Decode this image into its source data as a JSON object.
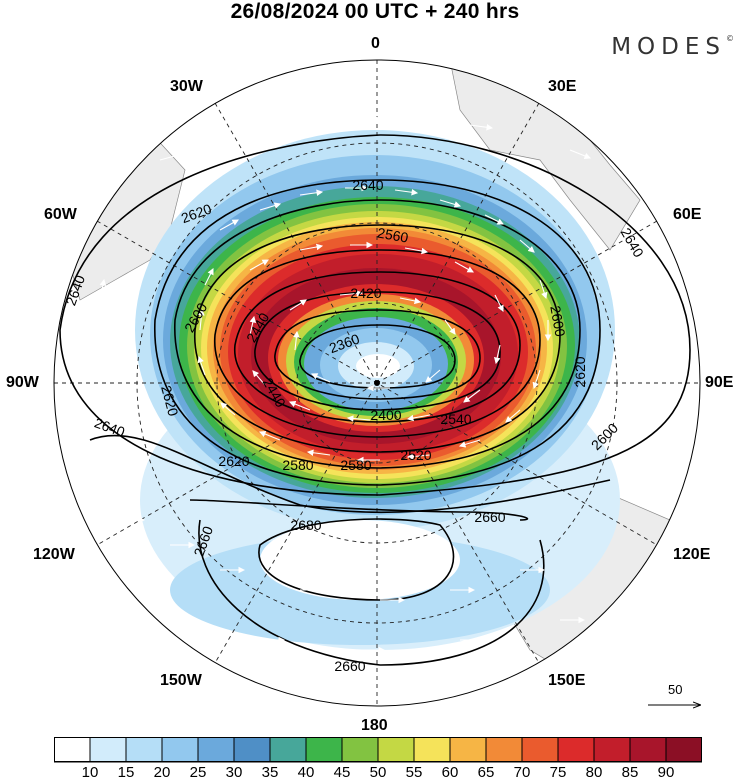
{
  "title": "26/08/2024  00 UTC  + 240 hrs",
  "brand": "MODES",
  "brand_mark": "©",
  "longitude_labels": {
    "top": "0",
    "bottom": "180",
    "left": "90W",
    "right": "90E",
    "w30": "30W",
    "e30": "30E",
    "w60": "60W",
    "e60": "60E",
    "w120": "120W",
    "e120": "120E",
    "w150": "150W",
    "e150": "150E"
  },
  "contour_labels": [
    "2640",
    "2620",
    "2560",
    "2600",
    "2420",
    "2440",
    "2360",
    "2400",
    "2620",
    "2640",
    "2640",
    "2580",
    "2580",
    "2520",
    "2620",
    "2660",
    "2680",
    "2660",
    "2660",
    "2640",
    "2620",
    "2600",
    "2600",
    "2540",
    "2440"
  ],
  "wind_reference": "50",
  "colorbar": {
    "labels": [
      "10",
      "15",
      "20",
      "25",
      "30",
      "35",
      "40",
      "45",
      "50",
      "55",
      "60",
      "65",
      "70",
      "75",
      "80",
      "85",
      "90"
    ],
    "colors": [
      "#ffffff",
      "#d2ecfb",
      "#b5def7",
      "#92c8ee",
      "#6ba9dc",
      "#4f8fc6",
      "#47a79a",
      "#3db54a",
      "#82c341",
      "#c4d844",
      "#f5e35a",
      "#f6b545",
      "#f28a37",
      "#ea5b2e",
      "#dc2b2b",
      "#c21e2b",
      "#a8152b",
      "#8b0f25"
    ]
  }
}
